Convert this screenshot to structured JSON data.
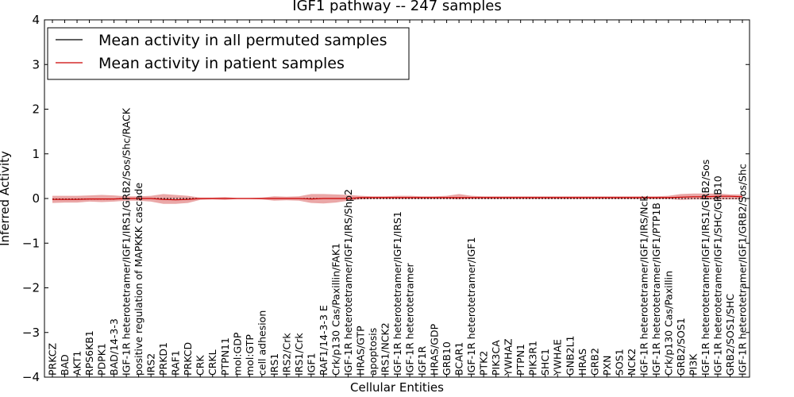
{
  "chart_data": {
    "type": "line",
    "title": "IGF1 pathway -- 247 samples",
    "xlabel": "Cellular Entities",
    "ylabel": "Inferred Activity",
    "ylim": [
      -4,
      4
    ],
    "yticks": [
      "−4",
      "−3",
      "−2",
      "−1",
      "0",
      "1",
      "2",
      "3",
      "4"
    ],
    "grid": false,
    "legend_position": "top-left",
    "colors": {
      "permuted": "#000000",
      "patient": "#cc0000",
      "band": "#e38a8a"
    },
    "categories": [
      "PRKCZ",
      "BAD",
      "AKT1",
      "RPS6KB1",
      "PDPK1",
      "BAD/14-3-3",
      "IGF-1R heterotetramer/IGF1/IRS1/GRB2/Sos/Shc/RACK",
      "positive regulation of MAPKKK cascade",
      "IRS2",
      "PRKD1",
      "RAF1",
      "PRKCD",
      "CRK",
      "CRKL",
      "PTPN11",
      "mol:GDP",
      "mol:GTP",
      "cell adhesion",
      "IRS1",
      "IRS2/Crk",
      "IRS1/Crk",
      "IGF1",
      "RAF1/14-3-3 E",
      "Crk/p130 Cas/Paxillin/FAK1",
      "IGF-1R heterotetramer/IGF1/IRS/Shp2",
      "HRAS/GTP",
      "apoptosis",
      "IRS1/NCK2",
      "IGF-1R heterotetramer/IGF1/IRS1",
      "IGF-1R heterotetramer",
      "IGF1R",
      "HRAS/GDP",
      "GRB10",
      "BCAR1",
      "IGF-1R heterotetramer/IGF1",
      "PTK2",
      "PIK3CA",
      "YWHAZ",
      "PTPN1",
      "PIK3R1",
      "SHC1",
      "YWHAE",
      "GNB2L1",
      "HRAS",
      "GRB2",
      "PXN",
      "SOS1",
      "NCK2",
      "IGF-1R heterotetramer/IGF1/IRS/Nck",
      "IGF-1R heterotetramer/IGF1/PTP1B",
      "Crk/p130 Cas/Paxillin",
      "GRB2/SOS1",
      "PI3K",
      "IGF-1R heterotetramer/IGF1/IRS1/GRB2/Sos",
      "IGF-1R heterotetramer/IGF1/SHC/GRB10",
      "GRB2/SOS1/SHC",
      "IGF-1R heterotetramer/IGF1/GRB2/Sos/Shc"
    ],
    "series": [
      {
        "name": "Mean activity in all permuted samples",
        "values": [
          -0.01,
          -0.01,
          -0.01,
          -0.01,
          -0.01,
          -0.01,
          0,
          0,
          0,
          0,
          0,
          0,
          0,
          0,
          0,
          0,
          0,
          0,
          0,
          0,
          0,
          0,
          0,
          0,
          0,
          0,
          0,
          0,
          0,
          0,
          0,
          0,
          0,
          0,
          0,
          0,
          0,
          0,
          0,
          0,
          0,
          0,
          0,
          0,
          0,
          0,
          0,
          0,
          0,
          0,
          0,
          0,
          0,
          0,
          0,
          0,
          0
        ]
      },
      {
        "name": "Mean activity in patient samples",
        "values": [
          -0.02,
          -0.02,
          -0.02,
          -0.01,
          -0.01,
          -0.01,
          0.0,
          0.0,
          0.0,
          -0.02,
          -0.03,
          -0.02,
          0.0,
          0.0,
          0.0,
          0.0,
          0.0,
          0.0,
          0.0,
          0.0,
          0.0,
          -0.01,
          0.0,
          0.0,
          0.0,
          0.02,
          0.02,
          0.02,
          0.02,
          0.02,
          0.02,
          0.02,
          0.02,
          0.02,
          0.02,
          0.02,
          0.02,
          0.02,
          0.02,
          0.02,
          0.02,
          0.02,
          0.02,
          0.02,
          0.02,
          0.02,
          0.02,
          0.02,
          0.02,
          0.02,
          0.02,
          0.03,
          0.04,
          0.04,
          0.05,
          0.05,
          0.04
        ]
      }
    ],
    "band_upper": [
      0.06,
      0.06,
      0.06,
      0.07,
      0.08,
      0.07,
      0.05,
      0.05,
      0.06,
      0.1,
      0.08,
      0.06,
      0.02,
      0.02,
      0.03,
      0.01,
      0.01,
      0.02,
      0.05,
      0.04,
      0.05,
      0.1,
      0.1,
      0.09,
      0.08,
      0.06,
      0.05,
      0.05,
      0.06,
      0.06,
      0.05,
      0.05,
      0.06,
      0.1,
      0.06,
      0.05,
      0.05,
      0.05,
      0.05,
      0.05,
      0.05,
      0.05,
      0.05,
      0.05,
      0.05,
      0.05,
      0.05,
      0.05,
      0.05,
      0.05,
      0.06,
      0.1,
      0.11,
      0.11,
      0.11,
      0.09,
      0.09
    ],
    "band_lower": [
      -0.1,
      -0.09,
      -0.09,
      -0.07,
      -0.08,
      -0.07,
      -0.05,
      -0.05,
      -0.07,
      -0.12,
      -0.12,
      -0.1,
      -0.03,
      -0.02,
      -0.03,
      -0.01,
      -0.01,
      -0.02,
      -0.05,
      -0.04,
      -0.05,
      -0.1,
      -0.11,
      -0.09,
      -0.05,
      -0.02,
      -0.01,
      -0.01,
      -0.01,
      -0.01,
      -0.01,
      -0.01,
      -0.01,
      -0.02,
      -0.01,
      -0.01,
      -0.01,
      -0.01,
      -0.01,
      -0.01,
      -0.01,
      -0.01,
      -0.01,
      -0.01,
      -0.01,
      -0.01,
      -0.01,
      -0.01,
      -0.01,
      -0.01,
      -0.01,
      -0.03,
      -0.02,
      -0.02,
      -0.02,
      -0.02,
      -0.02
    ]
  }
}
